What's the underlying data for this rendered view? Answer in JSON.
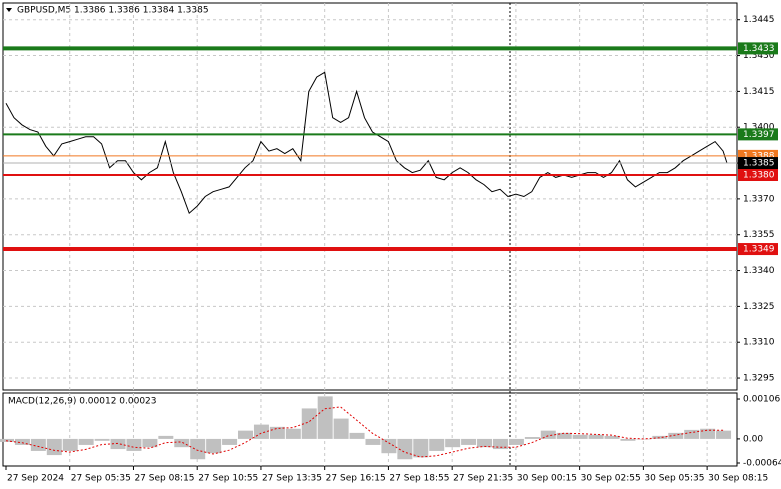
{
  "chart_data": [
    {
      "type": "line",
      "title": "GBPUSD,M5  1.3386 1.3386 1.3384 1.3385",
      "color": "#000000",
      "grid": true,
      "xlim": [
        -1.5,
        367
      ],
      "ylim": [
        1.329,
        1.3452
      ],
      "xticks": [
        {
          "value": 0,
          "label": "27 Sep 2024"
        },
        {
          "value": 32,
          "label": "27 Sep 05:35"
        },
        {
          "value": 64,
          "label": "27 Sep 08:15"
        },
        {
          "value": 96,
          "label": "27 Sep 10:55"
        },
        {
          "value": 128,
          "label": "27 Sep 13:35"
        },
        {
          "value": 160,
          "label": "27 Sep 16:15"
        },
        {
          "value": 192,
          "label": "27 Sep 18:55"
        },
        {
          "value": 224,
          "label": "27 Sep 21:35"
        },
        {
          "value": 256,
          "label": "30 Sep 00:15"
        },
        {
          "value": 288,
          "label": "30 Sep 02:55"
        },
        {
          "value": 320,
          "label": "30 Sep 05:35"
        },
        {
          "value": 352,
          "label": "30 Sep 08:15"
        }
      ],
      "yticks": [
        1.3445,
        {
          "value": 1.343,
          "label": "1.3430"
        },
        1.3415,
        {
          "value": 1.34,
          "label": "1.3400"
        },
        1.3385,
        {
          "value": 1.337,
          "label": "1.3370"
        },
        1.3355,
        {
          "value": 1.334,
          "label": "1.3340"
        },
        1.3325,
        {
          "value": 1.331,
          "label": "1.3310"
        },
        1.3295
      ],
      "levels": [
        {
          "value": 1.3433,
          "label": "1.3433",
          "color": "#1a7a1a"
        },
        {
          "value": 1.3397,
          "label": "1.3397",
          "color": "#1a7a1a"
        },
        {
          "value": 1.3388,
          "label": "1.3388",
          "color": "#f07820"
        },
        {
          "value": 1.3385,
          "label": "1.3385",
          "color": "#000000"
        },
        {
          "value": 1.338,
          "label": "1.3380",
          "color": "#e01010"
        },
        {
          "value": 1.3349,
          "label": "1.3349",
          "color": "#e01010"
        }
      ],
      "x": [
        0,
        4,
        8,
        12,
        16,
        20,
        24,
        28,
        32,
        36,
        40,
        44,
        48,
        52,
        56,
        60,
        64,
        68,
        72,
        76,
        80,
        84,
        88,
        92,
        96,
        100,
        104,
        108,
        112,
        116,
        120,
        124,
        128,
        132,
        136,
        140,
        144,
        148,
        152,
        156,
        160,
        164,
        168,
        172,
        176,
        180,
        184,
        188,
        192,
        196,
        200,
        204,
        208,
        212,
        216,
        220,
        224,
        228,
        232,
        236,
        240,
        244,
        248,
        252,
        256,
        260,
        264,
        268,
        272,
        276,
        280,
        284,
        288,
        292,
        296,
        300,
        304,
        308,
        312,
        316,
        320,
        324,
        328,
        332,
        336,
        340,
        344,
        348,
        352,
        356,
        360,
        362
      ],
      "values": [
        1.341,
        1.3404,
        1.3401,
        1.3399,
        1.3398,
        1.3392,
        1.3388,
        1.3393,
        1.3394,
        1.3395,
        1.3396,
        1.3396,
        1.3393,
        1.3383,
        1.3386,
        1.3386,
        1.3381,
        1.3378,
        1.3381,
        1.3383,
        1.3394,
        1.3381,
        1.3373,
        1.3364,
        1.3367,
        1.3371,
        1.3373,
        1.3374,
        1.3375,
        1.3379,
        1.3383,
        1.3386,
        1.3394,
        1.339,
        1.3391,
        1.3389,
        1.3391,
        1.3386,
        1.3415,
        1.3421,
        1.3423,
        1.3404,
        1.3402,
        1.3404,
        1.3415,
        1.3404,
        1.3398,
        1.3396,
        1.3394,
        1.3386,
        1.3383,
        1.3381,
        1.3382,
        1.3386,
        1.3379,
        1.3378,
        1.3381,
        1.3383,
        1.3381,
        1.3378,
        1.3376,
        1.3373,
        1.3374,
        1.3371,
        1.3372,
        1.3371,
        1.3373,
        1.3379,
        1.3381,
        1.3379,
        1.338,
        1.3379,
        1.338,
        1.3381,
        1.3381,
        1.3379,
        1.3381,
        1.3386,
        1.3378,
        1.3375,
        1.3377,
        1.3379,
        1.3381,
        1.3381,
        1.3383,
        1.3386,
        1.3388,
        1.339,
        1.3392,
        1.3394,
        1.339,
        1.3385
      ]
    },
    {
      "type": "macd",
      "title": "MACD(12,26,9) 0.00012 0.00023",
      "grid": true,
      "xlim": [
        -1.5,
        367
      ],
      "ylim": [
        -0.00072,
        0.00122
      ],
      "yticks": [
        0.00106,
        {
          "value": 0,
          "label": "0.00"
        },
        -0.00064
      ],
      "x": [
        0,
        8,
        16,
        24,
        32,
        40,
        48,
        56,
        64,
        72,
        80,
        88,
        96,
        104,
        112,
        120,
        128,
        136,
        144,
        152,
        160,
        168,
        176,
        184,
        192,
        200,
        208,
        216,
        224,
        232,
        240,
        248,
        256,
        264,
        272,
        280,
        288,
        296,
        304,
        312,
        320,
        328,
        336,
        344,
        352,
        360
      ],
      "series": [
        {
          "type": "bar",
          "color": "#c0c0c0",
          "values": [
            -8e-05,
            -0.00016,
            -0.00032,
            -0.00043,
            -0.00032,
            -0.00016,
            -5e-05,
            -0.00027,
            -0.00032,
            -0.00022,
            8e-05,
            -0.00022,
            -0.00054,
            -0.00038,
            -0.00016,
            0.00022,
            0.00038,
            0.00032,
            0.00027,
            0.00081,
            0.00113,
            0.00054,
            0.00016,
            -0.00016,
            -0.00038,
            -0.00054,
            -0.00049,
            -0.00032,
            -0.00022,
            -0.00016,
            -0.00022,
            -0.00027,
            -0.00016,
            5e-05,
            0.00022,
            0.00016,
            0.00011,
            0.00011,
            8e-05,
            -5e-05,
            0,
            8e-05,
            0.00016,
            0.00024,
            0.00027,
            0.00022
          ]
        },
        {
          "type": "line",
          "color": "#e00000",
          "values": [
            -5e-05,
            -0.0001,
            -0.0002,
            -0.0003,
            -0.00035,
            -0.00028,
            -0.00015,
            -0.00012,
            -0.00022,
            -0.00025,
            -0.0001,
            -8e-05,
            -0.0003,
            -0.0004,
            -0.0003,
            -0.0001,
            0.00015,
            0.00028,
            0.0003,
            0.00045,
            0.0008,
            0.00085,
            0.0005,
            0.00015,
            -0.0001,
            -0.00035,
            -0.00048,
            -0.00045,
            -0.00035,
            -0.00025,
            -0.0002,
            -0.00022,
            -0.00022,
            -0.0001,
            8e-05,
            0.00015,
            0.00014,
            0.00012,
            0.0001,
            2e-05,
            0,
            3e-05,
            0.0001,
            0.00017,
            0.00023,
            0.00023
          ]
        }
      ]
    }
  ]
}
